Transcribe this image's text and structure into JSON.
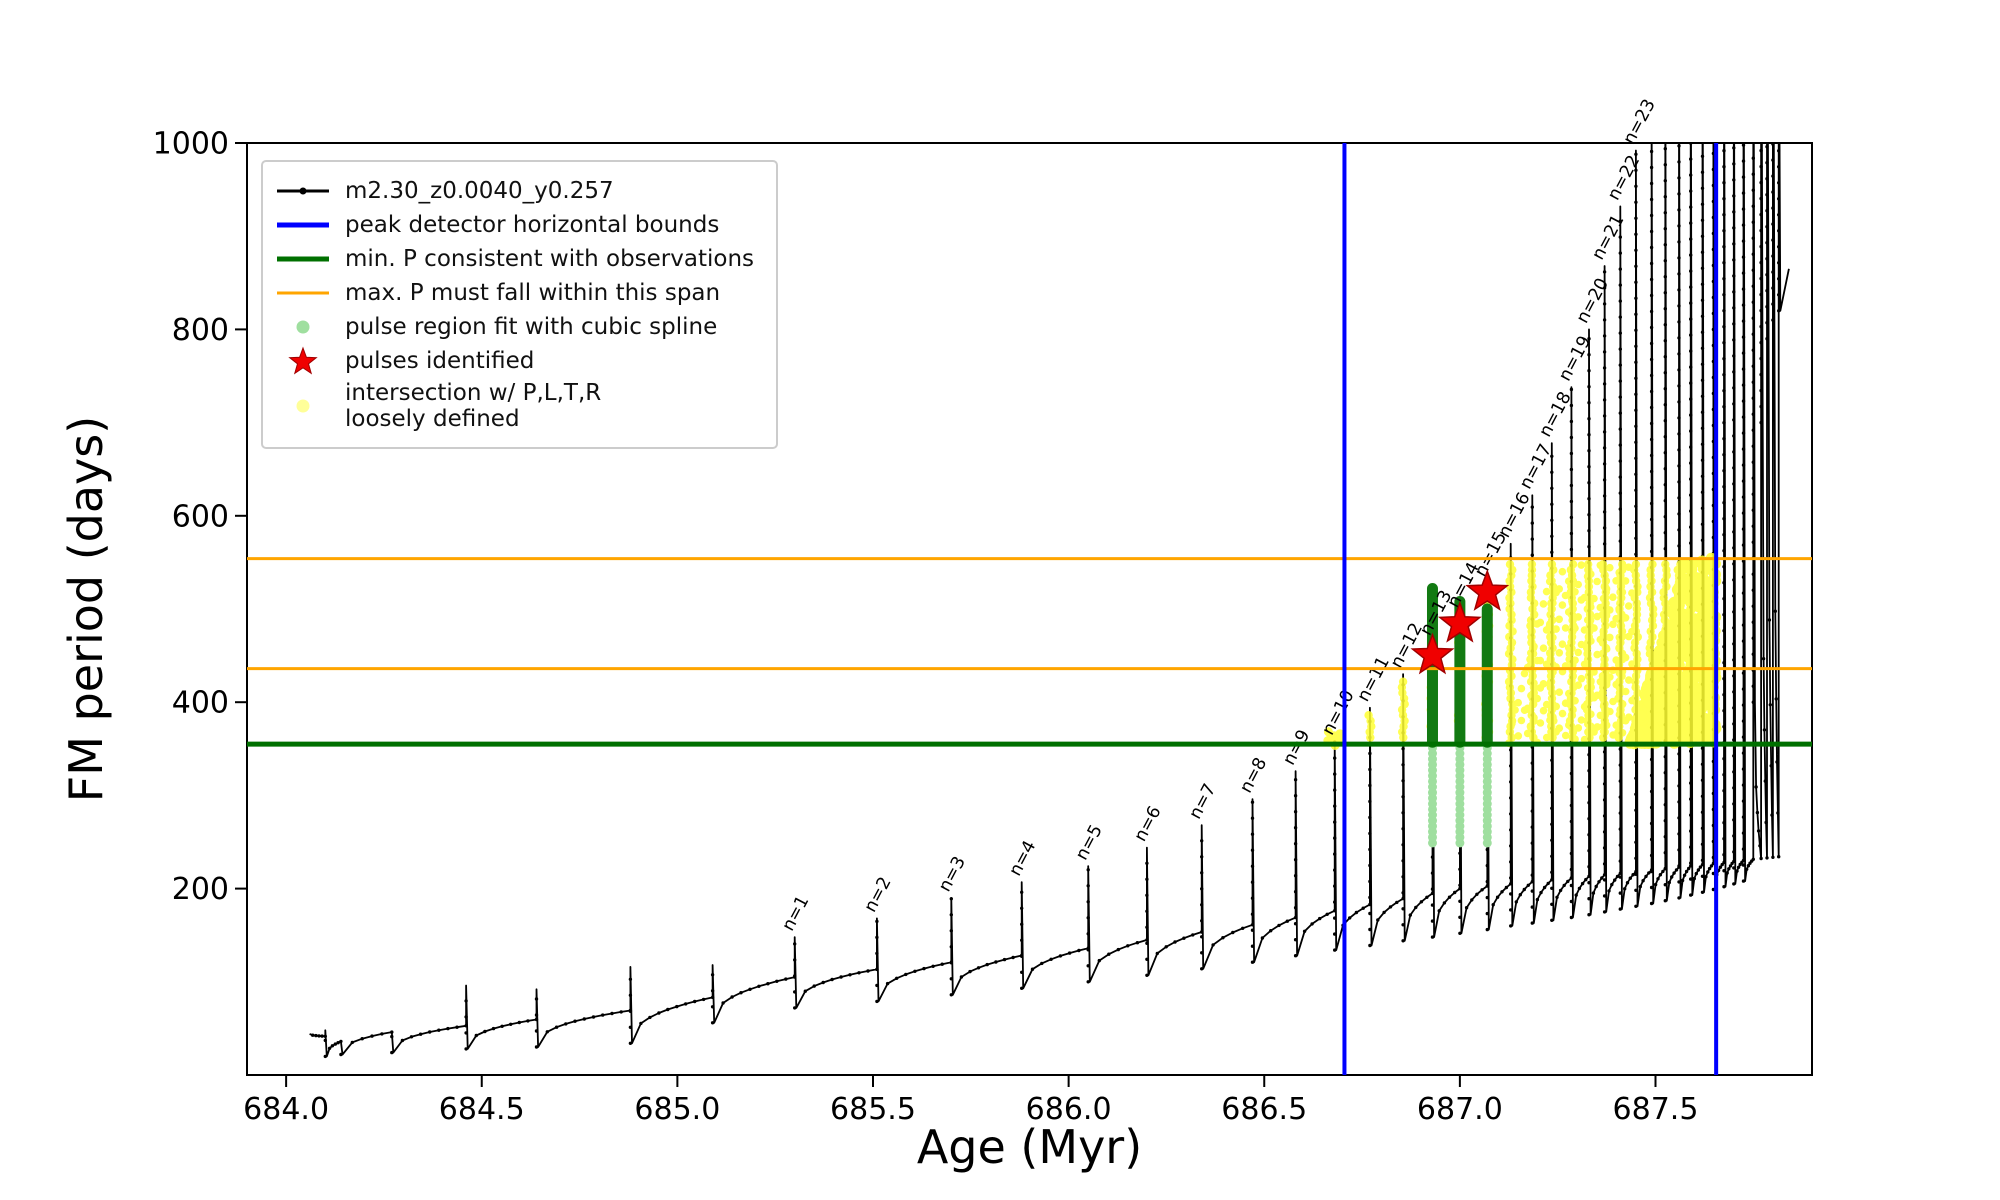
{
  "figure": {
    "background": "#ffffff"
  },
  "chart_data": {
    "type": "line",
    "title": "",
    "xlabel": "Age (Myr)",
    "ylabel": "FM period (days)",
    "xlim": [
      683.9,
      687.9
    ],
    "ylim": [
      0,
      1000
    ],
    "xticks": [
      684.0,
      684.5,
      685.0,
      685.5,
      686.0,
      686.5,
      687.0,
      687.5
    ],
    "xtick_labels": [
      "684.0",
      "684.5",
      "685.0",
      "685.5",
      "686.0",
      "686.5",
      "687.0",
      "687.5"
    ],
    "yticks": [
      200,
      400,
      600,
      800,
      1000
    ],
    "ytick_labels": [
      "200",
      "400",
      "600",
      "800",
      "1000"
    ],
    "grid": false,
    "legend_position": "upper left",
    "series_name": "m2.30_z0.0040_y0.257",
    "track_color": "#000000",
    "baseline": {
      "shoulder_points": [
        [
          684.05,
          40
        ],
        [
          684.5,
          54
        ],
        [
          685.0,
          74
        ],
        [
          685.3,
          105
        ],
        [
          686.0,
          133
        ],
        [
          686.5,
          163
        ],
        [
          687.0,
          200
        ],
        [
          687.4,
          216
        ],
        [
          687.9,
          238
        ]
      ],
      "dip_ratio": 0.62
    },
    "pulses": [
      {
        "label": "",
        "age": 684.1,
        "peak": 48,
        "dip": 20
      },
      {
        "label": "",
        "age": 684.14,
        "peak": 36,
        "dip": 22
      },
      {
        "label": "",
        "age": 684.27,
        "peak": 46,
        "dip": 24
      },
      {
        "label": "",
        "age": 684.46,
        "peak": 96,
        "dip": 28
      },
      {
        "label": "",
        "age": 684.64,
        "peak": 92,
        "dip": 30
      },
      {
        "label": "",
        "age": 684.88,
        "peak": 116,
        "dip": 34
      },
      {
        "label": "",
        "age": 685.09,
        "peak": 118,
        "dip": 56
      },
      {
        "label": "n=1",
        "age": 685.3,
        "peak": 148,
        "dip": 72
      },
      {
        "label": "n=2",
        "age": 685.51,
        "peak": 168,
        "dip": 79
      },
      {
        "label": "n=3",
        "age": 685.7,
        "peak": 190,
        "dip": 86
      },
      {
        "label": "n=4",
        "age": 685.88,
        "peak": 207,
        "dip": 93
      },
      {
        "label": "n=5",
        "age": 686.05,
        "peak": 224,
        "dip": 100
      },
      {
        "label": "n=6",
        "age": 686.2,
        "peak": 244,
        "dip": 107
      },
      {
        "label": "n=7",
        "age": 686.34,
        "peak": 268,
        "dip": 114
      },
      {
        "label": "n=8",
        "age": 686.47,
        "peak": 296,
        "dip": 121
      },
      {
        "label": "n=9",
        "age": 686.58,
        "peak": 326,
        "dip": 128
      },
      {
        "label": "n=10",
        "age": 686.68,
        "peak": 358,
        "dip": 134
      },
      {
        "label": "n=11",
        "age": 686.77,
        "peak": 394,
        "dip": 139
      },
      {
        "label": "n=12",
        "age": 686.855,
        "peak": 430,
        "dip": 144
      },
      {
        "label": "n=13",
        "age": 686.93,
        "peak": 465,
        "dip": 148
      },
      {
        "label": "n=14",
        "age": 687.0,
        "peak": 495,
        "dip": 152
      },
      {
        "label": "n=15",
        "age": 687.07,
        "peak": 528,
        "dip": 156
      },
      {
        "label": "n=16",
        "age": 687.13,
        "peak": 570,
        "dip": 160
      },
      {
        "label": "n=17",
        "age": 687.185,
        "peak": 622,
        "dip": 163
      },
      {
        "label": "n=18",
        "age": 687.235,
        "peak": 678,
        "dip": 166
      },
      {
        "label": "n=19",
        "age": 687.285,
        "peak": 738,
        "dip": 169
      },
      {
        "label": "n=20",
        "age": 687.33,
        "peak": 800,
        "dip": 172
      },
      {
        "label": "n=21",
        "age": 687.37,
        "peak": 868,
        "dip": 175
      },
      {
        "label": "n=22",
        "age": 687.41,
        "peak": 932,
        "dip": 178
      },
      {
        "label": "n=23",
        "age": 687.45,
        "peak": 992,
        "dip": 181
      },
      {
        "label": "",
        "age": 687.49,
        "peak": 1060,
        "dip": 184
      },
      {
        "label": "",
        "age": 687.525,
        "peak": 1120,
        "dip": 187
      },
      {
        "label": "",
        "age": 687.56,
        "peak": 1170,
        "dip": 190
      },
      {
        "label": "",
        "age": 687.59,
        "peak": 1210,
        "dip": 193
      },
      {
        "label": "",
        "age": 687.62,
        "peak": 1240,
        "dip": 196
      },
      {
        "label": "",
        "age": 687.648,
        "peak": 1260,
        "dip": 199
      },
      {
        "label": "",
        "age": 687.675,
        "peak": 1270,
        "dip": 202
      },
      {
        "label": "",
        "age": 687.7,
        "peak": 1280,
        "dip": 205
      },
      {
        "label": "",
        "age": 687.725,
        "peak": 1290,
        "dip": 208
      },
      {
        "label": "",
        "age": 687.75,
        "peak": 1300,
        "dip": 400
      },
      {
        "label": "",
        "age": 687.77,
        "peak": 1300,
        "dip": 700
      },
      {
        "label": "",
        "age": 687.785,
        "peak": 1300,
        "dip": 790
      },
      {
        "label": "",
        "age": 687.8,
        "peak": 1300,
        "dip": 810
      },
      {
        "label": "",
        "age": 687.815,
        "peak": 1200,
        "dip": 820
      }
    ],
    "bounds": {
      "blue_vlines": [
        686.705,
        687.655
      ],
      "blue_color": "#0000ff",
      "green_hline": 355,
      "green_color": "#007000",
      "orange_hlines": [
        436,
        554
      ],
      "orange_color": "#ffa500"
    },
    "green_bars": {
      "color": "#127a12",
      "bars": [
        {
          "age": 686.93,
          "y0": 357,
          "y1": 522
        },
        {
          "age": 687.0,
          "y0": 357,
          "y1": 508
        },
        {
          "age": 687.07,
          "y0": 357,
          "y1": 500
        }
      ]
    },
    "lightgreen_strips": {
      "color": "#9fdf9f",
      "ages": [
        686.93,
        687.0,
        687.07
      ],
      "y0": 249,
      "y1": 352
    },
    "stars": {
      "color": "#f00000",
      "edge": "#a00000",
      "points": [
        {
          "age": 686.93,
          "p": 450
        },
        {
          "age": 687.0,
          "p": 484
        },
        {
          "age": 687.07,
          "p": 518
        }
      ]
    },
    "yellow": {
      "color": "#ffff33",
      "band_y": [
        362,
        548
      ],
      "pre_blob": {
        "age": 686.68,
        "y": 362,
        "count": 14
      },
      "streak_region": {
        "x0": 687.125,
        "x1": 687.44,
        "streaks": 13,
        "y0": 362,
        "y1": 545
      },
      "dense_blob": {
        "x0": 687.435,
        "x1": 687.655,
        "y0": 356,
        "rise_end": 687.58,
        "y_top": 556,
        "count": 750
      }
    }
  },
  "legend": {
    "items": [
      {
        "marker": "line-dot",
        "color": "#000000",
        "thick": false,
        "label": "m2.30_z0.0040_y0.257"
      },
      {
        "marker": "line",
        "color": "#0000ff",
        "thick": true,
        "label": "peak detector horizontal bounds"
      },
      {
        "marker": "line",
        "color": "#007000",
        "thick": true,
        "label": "min. P consistent with observations"
      },
      {
        "marker": "line",
        "color": "#ffa500",
        "thick": false,
        "label": "max. P must fall within this span"
      },
      {
        "marker": "dot",
        "color": "#9fdf9f",
        "thick": false,
        "label": "pulse region fit with cubic spline"
      },
      {
        "marker": "star",
        "color": "#f00000",
        "thick": false,
        "label": "pulses identified"
      },
      {
        "marker": "dot",
        "color": "#ffff99",
        "thick": false,
        "label": "intersection w/ P,L,T,R\nloosely defined"
      }
    ]
  }
}
